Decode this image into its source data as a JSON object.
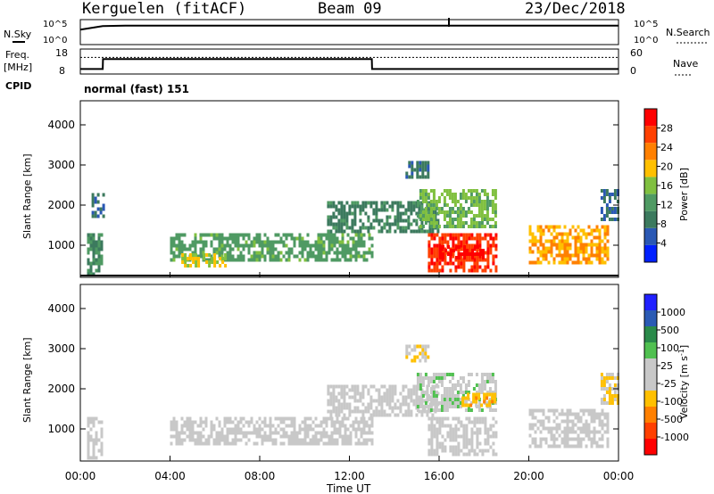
{
  "header": {
    "station": "Kerguelen (fitACF)",
    "beam": "Beam 09",
    "date": "23/Dec/2018"
  },
  "noise_panel": {
    "left_label": "N.Sky",
    "left_ticks": [
      "10^5",
      "10^0"
    ],
    "right_ticks": [
      "10^5",
      "10^0"
    ],
    "right_label": "N.Search"
  },
  "freq_panel": {
    "left_label_line1": "Freq.",
    "left_label_line2": "[MHz]",
    "left_ticks": [
      "18",
      "8"
    ],
    "right_ticks": [
      "60",
      "0"
    ],
    "right_label": "Nave",
    "cpid_label": "CPID",
    "cpid_value": "normal (fast) 151"
  },
  "colors": {
    "power_scale": [
      "#0020ff",
      "#2a58b4",
      "#3c7a5e",
      "#4f9a63",
      "#80c040",
      "#ffc000",
      "#ff8000",
      "#ff4000",
      "#ff0000"
    ],
    "velocity_scale": [
      "#ff0000",
      "#ff4000",
      "#ff8000",
      "#ffc000",
      "#c8c8c8",
      "#c8c8c8",
      "#50c050",
      "#2a8a4a",
      "#2a5ab4",
      "#2020ff"
    ],
    "line": "#000000"
  },
  "chart_data": [
    {
      "type": "line",
      "title": "",
      "ylabel": "N.Sky",
      "x": [
        "00:00",
        "01:00",
        "02:00",
        "03:00",
        "04:00",
        "06:00",
        "08:00",
        "10:00",
        "12:00",
        "14:00",
        "16:00",
        "18:00",
        "20:00",
        "22:00",
        "24:00"
      ],
      "series": [
        {
          "name": "N.Sky",
          "values": [
            3,
            3.7,
            3.8,
            3.8,
            3.8,
            3.8,
            3.8,
            3.8,
            3.8,
            3.8,
            3.8,
            3.8,
            3.8,
            3.8,
            3.8
          ]
        }
      ],
      "ylim": [
        0,
        5
      ]
    },
    {
      "type": "line",
      "ylabel": "Freq. [MHz]",
      "x": [
        "00:00",
        "01:00",
        "01:01",
        "13:00",
        "13:01",
        "24:00"
      ],
      "series": [
        {
          "name": "Freq.",
          "values": [
            10,
            10,
            14,
            14,
            10,
            10
          ]
        },
        {
          "name": "Nave",
          "values": [
            40,
            40,
            40,
            40,
            40,
            40
          ]
        }
      ],
      "ylim": [
        8,
        18
      ],
      "y2lim": [
        0,
        60
      ]
    },
    {
      "type": "heatmap",
      "ylabel": "Slant Range [km]",
      "colorbar_label": "Power [dB]",
      "colorbar_ticks": [
        "4",
        "8",
        "12",
        "16",
        "20",
        "24",
        "28"
      ],
      "yticks": [
        "1000",
        "2000",
        "3000",
        "4000"
      ],
      "ylim": [
        200,
        4600
      ],
      "xlim": [
        0,
        24
      ],
      "clim": [
        0,
        30
      ],
      "regions": [
        {
          "t0": 0.3,
          "t1": 1.0,
          "r0": 300,
          "r1": 1300,
          "value": 10
        },
        {
          "t0": 0.5,
          "t1": 1.0,
          "r0": 1700,
          "r1": 2300,
          "value": 7
        },
        {
          "t0": 4.0,
          "t1": 13.0,
          "r0": 600,
          "r1": 1300,
          "value": 12
        },
        {
          "t0": 4.5,
          "t1": 6.5,
          "r0": 500,
          "r1": 800,
          "value": 17
        },
        {
          "t0": 11.0,
          "t1": 16.0,
          "r0": 1300,
          "r1": 2100,
          "value": 9
        },
        {
          "t0": 14.5,
          "t1": 15.5,
          "r0": 2700,
          "r1": 3100,
          "value": 8
        },
        {
          "t0": 15.0,
          "t1": 18.5,
          "r0": 1500,
          "r1": 2400,
          "value": 14
        },
        {
          "t0": 15.5,
          "t1": 18.5,
          "r0": 400,
          "r1": 1300,
          "value": 26
        },
        {
          "t0": 16.0,
          "t1": 18.0,
          "r0": 650,
          "r1": 1000,
          "value": 29
        },
        {
          "t0": 20.0,
          "t1": 23.5,
          "r0": 600,
          "r1": 1500,
          "value": 20
        },
        {
          "t0": 23.2,
          "t1": 24.0,
          "r0": 1600,
          "r1": 2400,
          "value": 7
        }
      ]
    },
    {
      "type": "heatmap",
      "ylabel": "Slant Range [km]",
      "xlabel": "Time UT",
      "colorbar_label": "Velocity [m s-1]",
      "colorbar_ticks": [
        "-1000",
        "-500",
        "-100",
        "-25",
        "25",
        "100",
        "500",
        "1000"
      ],
      "yticks": [
        "1000",
        "2000",
        "3000",
        "4000"
      ],
      "xticks": [
        "00:00",
        "04:00",
        "08:00",
        "12:00",
        "16:00",
        "20:00",
        "00:00"
      ],
      "ylim": [
        200,
        4600
      ],
      "xlim": [
        0,
        24
      ],
      "clim": [
        -1000,
        1000
      ],
      "regions": [
        {
          "t0": 0.3,
          "t1": 1.0,
          "r0": 300,
          "r1": 1300,
          "value": 0
        },
        {
          "t0": 4.0,
          "t1": 13.0,
          "r0": 600,
          "r1": 1300,
          "value": 0
        },
        {
          "t0": 11.0,
          "t1": 16.0,
          "r0": 1300,
          "r1": 2100,
          "value": 10
        },
        {
          "t0": 14.5,
          "t1": 15.5,
          "r0": 2700,
          "r1": 3100,
          "value": -150
        },
        {
          "t0": 15.0,
          "t1": 18.5,
          "r0": 1500,
          "r1": 2400,
          "value": 120
        },
        {
          "t0": 15.5,
          "t1": 18.5,
          "r0": 400,
          "r1": 1300,
          "value": 5
        },
        {
          "t0": 17.0,
          "t1": 18.5,
          "r0": 1600,
          "r1": 1900,
          "value": -300
        },
        {
          "t0": 20.0,
          "t1": 23.5,
          "r0": 600,
          "r1": 1500,
          "value": 0
        },
        {
          "t0": 23.2,
          "t1": 24.0,
          "r0": 1600,
          "r1": 2400,
          "value": -200
        }
      ]
    }
  ]
}
